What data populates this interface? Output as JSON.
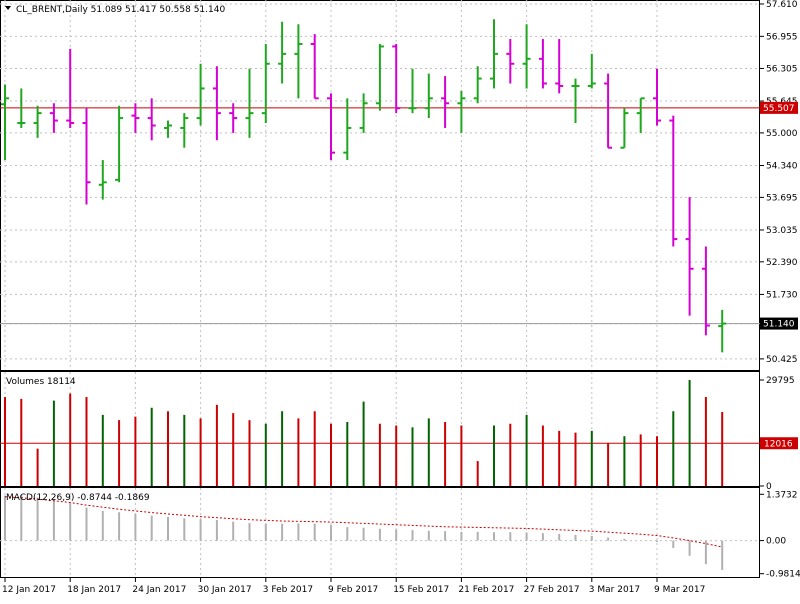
{
  "header": {
    "symbol_line": "CL_BRENT,Daily  51.089 51.417 50.558 51.140",
    "arrow_icon": "triangle-down-icon"
  },
  "colors": {
    "up": "#1fa81f",
    "down": "#d400d4",
    "vol_up": "#006400",
    "vol_down": "#cc0000",
    "price_line": "#cc0000",
    "grid": "#c0c0c0",
    "macd_hist": "#b0b0b0",
    "signal": "#cc0000"
  },
  "chart_data": [
    {
      "type": "ohlc",
      "panel": "price",
      "title": "CL_BRENT,Daily",
      "last": [
        51.089,
        51.417,
        50.558,
        51.14
      ],
      "ylim": [
        50.2,
        57.65
      ],
      "yticks": [
        "57.610",
        "56.955",
        "56.305",
        "55.645",
        "55.000",
        "54.340",
        "53.695",
        "53.035",
        "52.390",
        "51.730",
        "51.140",
        "50.425"
      ],
      "current_price": 55.507,
      "current_price_label": "55.507",
      "last_price_label": "51.140",
      "bars": [
        [
          55.58,
          55.98,
          54.45,
          55.7
        ],
        [
          55.2,
          55.9,
          55.1,
          55.2
        ],
        [
          55.2,
          55.55,
          54.9,
          55.4
        ],
        [
          55.4,
          55.6,
          55.0,
          55.25
        ],
        [
          55.25,
          56.7,
          55.1,
          55.2
        ],
        [
          55.2,
          55.5,
          53.55,
          54.0
        ],
        [
          53.95,
          54.45,
          53.65,
          54.0
        ],
        [
          54.05,
          55.55,
          54.0,
          55.3
        ],
        [
          55.35,
          55.6,
          55.0,
          55.3
        ],
        [
          55.3,
          55.7,
          54.85,
          55.15
        ],
        [
          55.1,
          55.25,
          54.9,
          55.15
        ],
        [
          55.1,
          55.4,
          54.7,
          55.3
        ],
        [
          55.3,
          56.4,
          55.15,
          55.9
        ],
        [
          55.9,
          56.35,
          54.85,
          55.4
        ],
        [
          55.4,
          55.6,
          55.0,
          55.3
        ],
        [
          55.3,
          56.3,
          54.9,
          55.4
        ],
        [
          55.4,
          56.8,
          55.2,
          56.4
        ],
        [
          56.4,
          57.25,
          56.0,
          56.6
        ],
        [
          56.6,
          57.2,
          55.7,
          56.8
        ],
        [
          56.8,
          57.0,
          55.7,
          55.7
        ],
        [
          55.7,
          55.8,
          54.45,
          54.6
        ],
        [
          54.6,
          55.7,
          54.45,
          55.1
        ],
        [
          55.1,
          55.8,
          55.0,
          55.6
        ],
        [
          55.6,
          56.8,
          55.45,
          56.75
        ],
        [
          56.75,
          56.8,
          55.4,
          55.5
        ],
        [
          55.5,
          56.3,
          55.4,
          55.5
        ],
        [
          55.5,
          56.2,
          55.3,
          55.7
        ],
        [
          55.7,
          56.15,
          55.1,
          55.6
        ],
        [
          55.6,
          55.85,
          55.0,
          55.7
        ],
        [
          55.7,
          56.35,
          55.6,
          56.1
        ],
        [
          56.1,
          57.3,
          55.9,
          56.6
        ],
        [
          56.6,
          56.9,
          56.0,
          56.4
        ],
        [
          56.4,
          57.2,
          55.9,
          56.5
        ],
        [
          56.5,
          56.9,
          55.9,
          56.0
        ],
        [
          56.0,
          56.9,
          55.8,
          55.95
        ],
        [
          55.95,
          56.1,
          55.2,
          55.95
        ],
        [
          55.95,
          56.6,
          55.9,
          56.0
        ],
        [
          56.0,
          56.2,
          54.7,
          54.7
        ],
        [
          54.7,
          55.5,
          54.7,
          55.4
        ],
        [
          55.4,
          55.7,
          55.0,
          55.7
        ],
        [
          55.7,
          56.3,
          55.15,
          55.25
        ],
        [
          55.25,
          55.35,
          52.7,
          52.85
        ],
        [
          52.85,
          53.7,
          51.3,
          52.25
        ],
        [
          52.25,
          52.7,
          50.9,
          51.1
        ],
        [
          51.09,
          51.417,
          50.558,
          51.14
        ]
      ]
    },
    {
      "type": "bar",
      "panel": "volume",
      "title": "Volumes 18114",
      "ylim": [
        0,
        29795
      ],
      "yticks": [
        "29795",
        "0"
      ],
      "level": 12016,
      "level_label": "12016",
      "values": [
        25000,
        24500,
        10500,
        24000,
        26000,
        25000,
        20000,
        18500,
        19500,
        22000,
        21000,
        20000,
        19000,
        22800,
        20500,
        18500,
        17500,
        21000,
        19000,
        21000,
        17500,
        18000,
        23700,
        17500,
        17000,
        16500,
        19000,
        18000,
        17000,
        7000,
        17000,
        17500,
        20000,
        17000,
        15500,
        15000,
        15500,
        12000,
        14000,
        14500,
        14000,
        21000,
        29795,
        25000,
        20800
      ],
      "directions": [
        "down",
        "down",
        "down",
        "up",
        "down",
        "down",
        "up",
        "down",
        "down",
        "up",
        "down",
        "up",
        "down",
        "down",
        "down",
        "down",
        "up",
        "up",
        "down",
        "down",
        "down",
        "up",
        "up",
        "down",
        "down",
        "up",
        "up",
        "down",
        "down",
        "down",
        "up",
        "down",
        "up",
        "down",
        "down",
        "down",
        "up",
        "down",
        "up",
        "down",
        "down",
        "up",
        "up",
        "down",
        "down"
      ]
    },
    {
      "type": "bar",
      "panel": "macd",
      "title": "MACD(12,26,9) -0.8744 -0.1869",
      "ylim": [
        -1.05,
        1.5
      ],
      "yticks": [
        "1.3732",
        "0.00",
        "-0.9814"
      ],
      "histogram": [
        1.33,
        1.35,
        1.28,
        1.2,
        1.13,
        0.98,
        0.88,
        0.84,
        0.79,
        0.74,
        0.7,
        0.66,
        0.63,
        0.61,
        0.56,
        0.52,
        0.5,
        0.5,
        0.51,
        0.5,
        0.46,
        0.4,
        0.38,
        0.35,
        0.33,
        0.31,
        0.29,
        0.28,
        0.26,
        0.26,
        0.25,
        0.25,
        0.24,
        0.22,
        0.2,
        0.17,
        0.14,
        0.09,
        0.05,
        0.0,
        -0.04,
        -0.22,
        -0.45,
        -0.7,
        -0.87
      ],
      "signal": [
        1.3,
        1.27,
        1.23,
        1.18,
        1.13,
        1.05,
        0.99,
        0.93,
        0.88,
        0.83,
        0.79,
        0.75,
        0.71,
        0.68,
        0.65,
        0.62,
        0.6,
        0.58,
        0.57,
        0.56,
        0.55,
        0.53,
        0.51,
        0.49,
        0.47,
        0.45,
        0.43,
        0.41,
        0.4,
        0.39,
        0.38,
        0.37,
        0.36,
        0.34,
        0.32,
        0.3,
        0.28,
        0.25,
        0.22,
        0.19,
        0.15,
        0.08,
        0.0,
        -0.09,
        -0.19
      ]
    }
  ],
  "xaxis": {
    "labels": [
      "12 Jan 2017",
      "18 Jan 2017",
      "24 Jan 2017",
      "30 Jan 2017",
      "3 Feb 2017",
      "9 Feb 2017",
      "15 Feb 2017",
      "21 Feb 2017",
      "27 Feb 2017",
      "3 Mar 2017",
      "9 Mar 2017"
    ],
    "label_bar_index": [
      0,
      4,
      8,
      12,
      16,
      20,
      24,
      28,
      32,
      36,
      40
    ]
  }
}
